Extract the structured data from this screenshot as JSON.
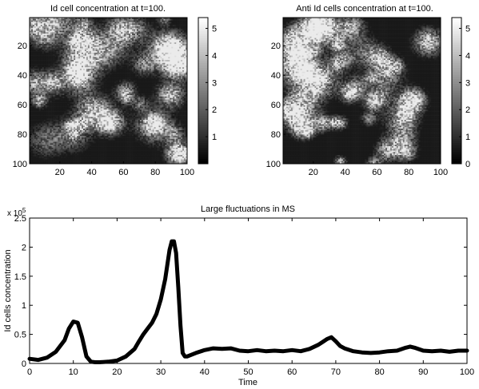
{
  "chart_data": [
    {
      "type": "heatmap",
      "title": "Id cell concentration at t=100.",
      "xticks": [
        20,
        40,
        60,
        80,
        100
      ],
      "yticks": [
        20,
        40,
        60,
        80,
        100
      ],
      "xlim": [
        1,
        100
      ],
      "ylim": [
        1,
        100
      ],
      "y_reversed": true,
      "grid_size": 100,
      "colormap": "gray",
      "colorbar_ticks": [
        1,
        2,
        3,
        4,
        5
      ],
      "colorbar_range": [
        0,
        5.4
      ]
    },
    {
      "type": "heatmap",
      "title": "Anti Id cells concentration at t=100.",
      "xticks": [
        20,
        40,
        60,
        80,
        100
      ],
      "yticks": [
        20,
        40,
        60,
        80,
        100
      ],
      "xlim": [
        1,
        100
      ],
      "ylim": [
        1,
        100
      ],
      "y_reversed": true,
      "grid_size": 100,
      "colormap": "gray",
      "colorbar_ticks": [
        0,
        1,
        2,
        3,
        4,
        5
      ],
      "colorbar_range": [
        0,
        5.4
      ]
    },
    {
      "type": "line",
      "title": "Large fluctuations in MS",
      "xlabel": "Time",
      "ylabel": "Id cells  concentration",
      "y_exponent_base": "x 10",
      "y_exponent_power": "5",
      "xlim": [
        0,
        100
      ],
      "ylim": [
        0,
        2.5
      ],
      "xticks": [
        0,
        10,
        20,
        30,
        40,
        50,
        60,
        70,
        80,
        90,
        100
      ],
      "yticks": [
        0,
        0.5,
        1,
        1.5,
        2,
        2.5
      ],
      "series": [
        {
          "color": "#000000",
          "x": [
            0,
            2,
            4,
            6,
            8,
            9,
            10,
            11,
            12,
            13,
            14,
            15,
            16,
            18,
            20,
            22,
            24,
            25,
            26,
            27,
            28,
            29,
            30,
            31,
            32,
            32.5,
            33,
            33.5,
            34,
            34.5,
            35,
            35.5,
            36,
            38,
            40,
            42,
            44,
            46,
            48,
            50,
            52,
            54,
            56,
            58,
            60,
            62,
            64,
            66,
            67,
            68,
            69,
            70,
            71,
            72,
            74,
            76,
            78,
            80,
            82,
            84,
            86,
            87,
            88,
            90,
            92,
            94,
            96,
            98,
            100
          ],
          "y": [
            0.08,
            0.06,
            0.1,
            0.2,
            0.4,
            0.6,
            0.72,
            0.7,
            0.45,
            0.12,
            0.03,
            0.02,
            0.02,
            0.03,
            0.05,
            0.12,
            0.25,
            0.38,
            0.5,
            0.6,
            0.7,
            0.85,
            1.1,
            1.45,
            1.95,
            2.1,
            2.1,
            1.9,
            1.3,
            0.65,
            0.18,
            0.12,
            0.12,
            0.18,
            0.23,
            0.26,
            0.25,
            0.26,
            0.22,
            0.21,
            0.23,
            0.21,
            0.22,
            0.21,
            0.23,
            0.21,
            0.25,
            0.32,
            0.37,
            0.42,
            0.45,
            0.38,
            0.3,
            0.26,
            0.21,
            0.19,
            0.18,
            0.19,
            0.21,
            0.22,
            0.27,
            0.29,
            0.27,
            0.22,
            0.21,
            0.22,
            0.2,
            0.22,
            0.22
          ]
        }
      ]
    }
  ]
}
